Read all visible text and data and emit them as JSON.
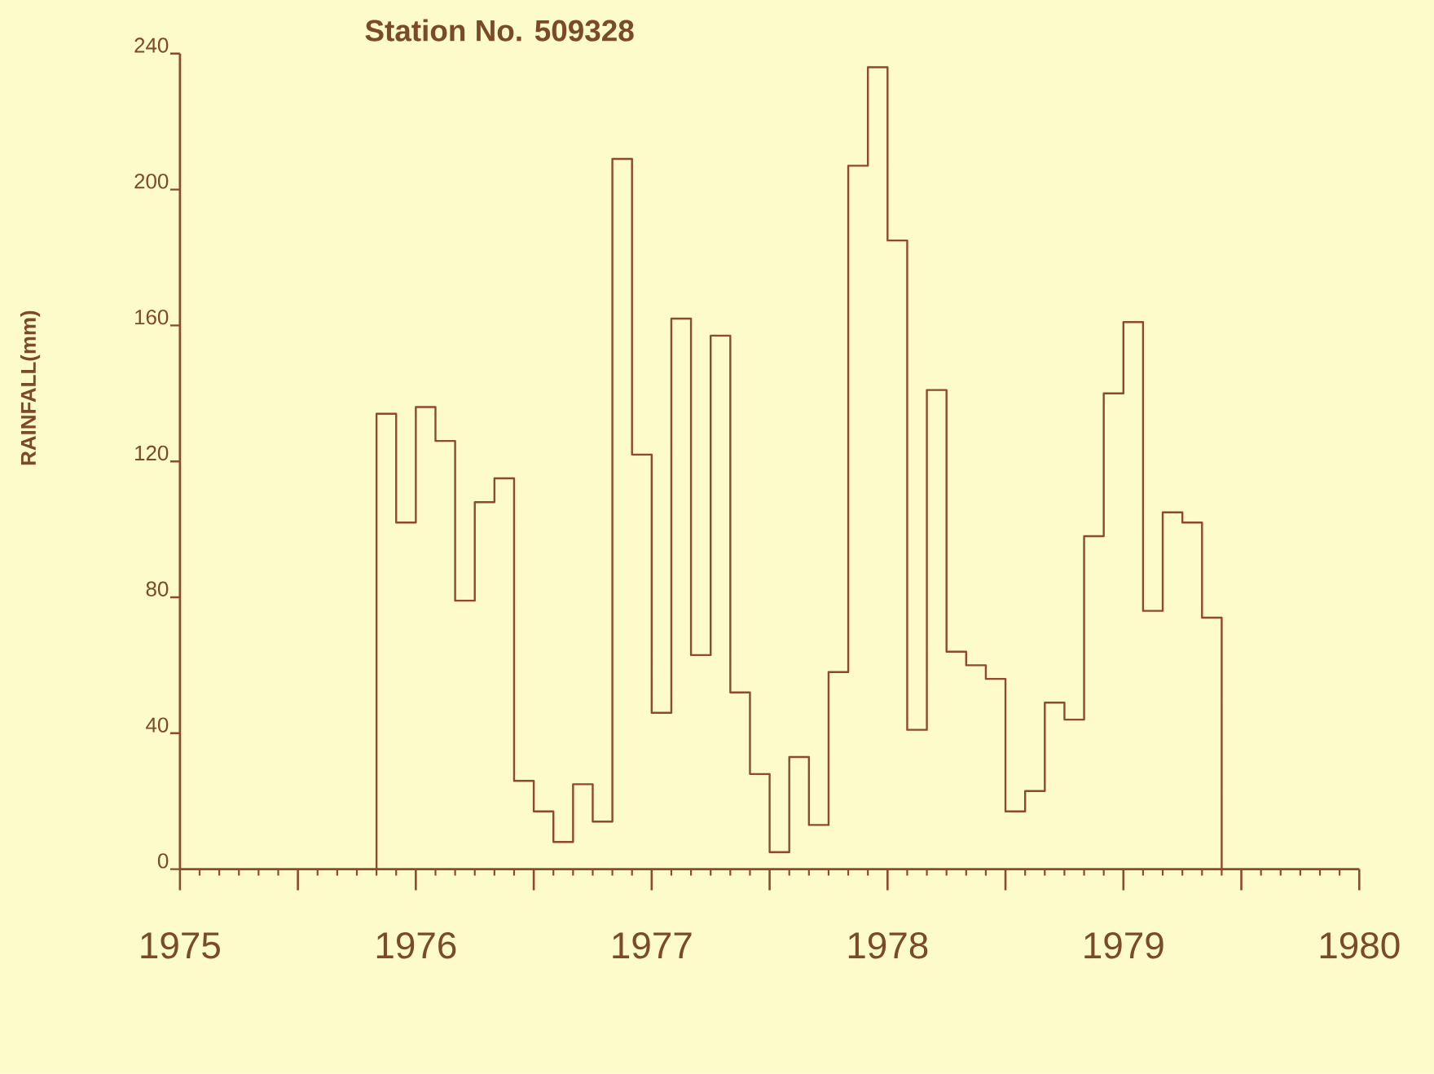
{
  "chart_data": {
    "type": "histogram",
    "title": "Station No. 509328",
    "ylabel": "RAINFALL(mm)",
    "bins": [
      "1975-11",
      "1975-12",
      "1976-01",
      "1976-02",
      "1976-03",
      "1976-04",
      "1976-05",
      "1976-06",
      "1976-07",
      "1976-08",
      "1976-09",
      "1976-10",
      "1976-11",
      "1976-12",
      "1977-01",
      "1977-02",
      "1977-03",
      "1977-04",
      "1977-05",
      "1977-06",
      "1977-07",
      "1977-08",
      "1977-09",
      "1977-10",
      "1977-11",
      "1977-12",
      "1978-01",
      "1978-02",
      "1978-03",
      "1978-04",
      "1978-05",
      "1978-06",
      "1978-07",
      "1978-08",
      "1978-09",
      "1978-10",
      "1978-11",
      "1978-12",
      "1979-01",
      "1979-02",
      "1979-03",
      "1979-04",
      "1979-05",
      "1979-06"
    ],
    "values": [
      134,
      102,
      136,
      126,
      79,
      108,
      115,
      26,
      17,
      8,
      25,
      14,
      209,
      122,
      46,
      162,
      63,
      157,
      52,
      28,
      5,
      33,
      13,
      58,
      207,
      236,
      185,
      41,
      141,
      64,
      60,
      56,
      17,
      23,
      49,
      44,
      98,
      140,
      161,
      76,
      105,
      102,
      74
    ],
    "color": "#8e4a2e",
    "xlim": [
      "1975",
      "1980"
    ],
    "xticks": [
      {
        "value": "1975",
        "label": "1975"
      },
      {
        "value": "1975-07",
        "label": null
      },
      {
        "value": "1976",
        "label": "1976"
      },
      {
        "value": "1976-07",
        "label": null
      },
      {
        "value": "1977",
        "label": "1977"
      },
      {
        "value": "1977-07",
        "label": null
      },
      {
        "value": "1978",
        "label": "1978"
      },
      {
        "value": "1978-07",
        "label": null
      },
      {
        "value": "1979",
        "label": "1979"
      },
      {
        "value": "1979-07",
        "label": null
      },
      {
        "value": "1980",
        "label": "1980"
      }
    ],
    "ylim": [
      0,
      240
    ],
    "yticks": [
      0,
      40,
      80,
      120,
      160,
      200,
      240
    ]
  }
}
